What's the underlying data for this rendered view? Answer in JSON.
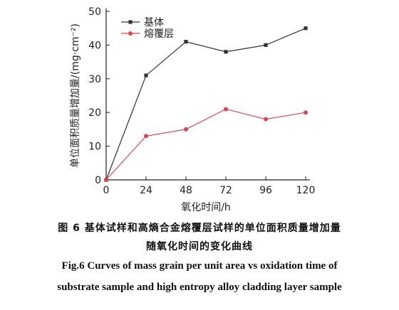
{
  "chart_data": {
    "type": "line",
    "x": [
      0,
      24,
      48,
      72,
      96,
      120
    ],
    "series": [
      {
        "name": "基体",
        "values": [
          0,
          31,
          41,
          38,
          40,
          45
        ],
        "color": "#333333",
        "marker": "square"
      },
      {
        "name": "熔覆层",
        "values": [
          0,
          13,
          15,
          21,
          18,
          20
        ],
        "color": "#d94452",
        "marker": "circle"
      }
    ],
    "xlabel": "氧化时间/h",
    "ylabel": "单位面积质量增加量/(mg·cm⁻²)",
    "xlim": [
      0,
      120
    ],
    "ylim": [
      0,
      50
    ],
    "xticks": [
      "0",
      "24",
      "48",
      "72",
      "96",
      "120"
    ],
    "yticks": [
      "0",
      "10",
      "20",
      "30",
      "40",
      "50"
    ],
    "legend_position": "top-left",
    "grid": false
  },
  "caption": {
    "zh_line1": "图 6   基体试样和高熵合金熔覆层试样的单位面积质量增加量",
    "zh_line2": "随氧化时间的变化曲线",
    "en_line1": "Fig.6   Curves of mass grain per unit area vs oxidation time of",
    "en_line2": "substrate sample and high entropy alloy cladding layer sample"
  }
}
